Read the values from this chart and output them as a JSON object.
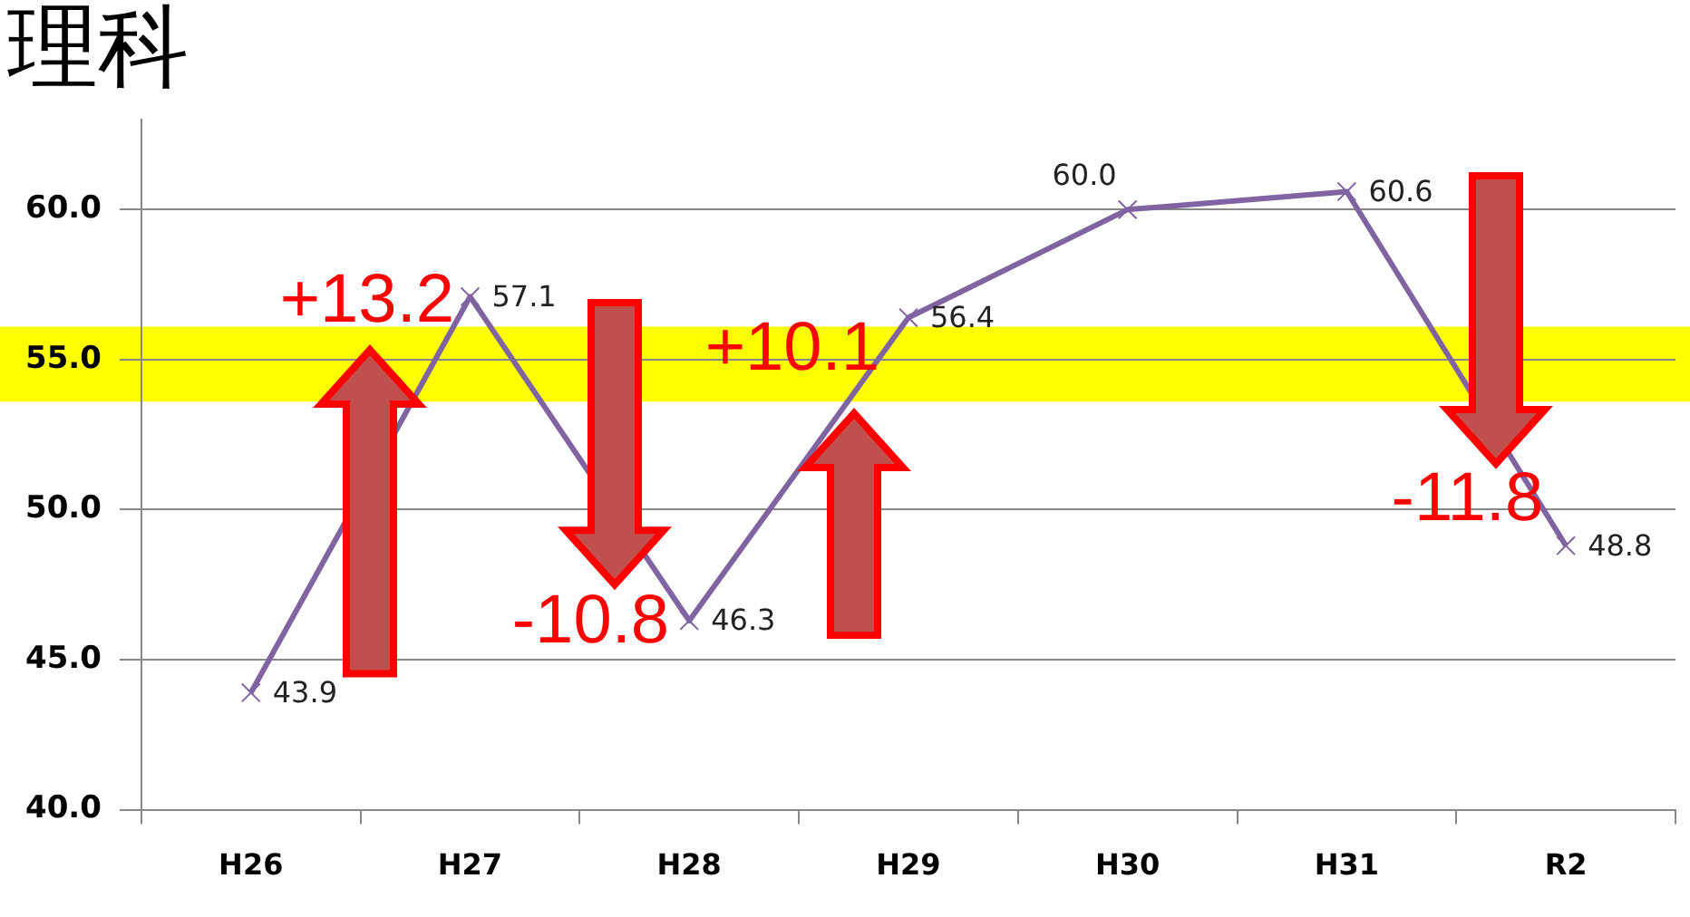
{
  "chart_data": {
    "type": "line",
    "title": "理科",
    "categories": [
      "H26",
      "H27",
      "H28",
      "H29",
      "H30",
      "H31",
      "R2"
    ],
    "series": [
      {
        "color": "#8064a2",
        "values": [
          43.9,
          57.1,
          46.3,
          56.4,
          60.0,
          60.6,
          48.8
        ]
      }
    ],
    "value_labels": [
      "43.9",
      "57.1",
      "46.3",
      "56.4",
      "60.0",
      "60.6",
      "48.8"
    ],
    "marker": "cross",
    "line_style": "solid",
    "grid": "y",
    "ylim": [
      40,
      63
    ],
    "yticks": [
      {
        "value": 40,
        "label": "40.0"
      },
      {
        "value": 45,
        "label": "45.0"
      },
      {
        "value": 50,
        "label": "50.0"
      },
      {
        "value": 55,
        "label": "55.0"
      },
      {
        "value": 60,
        "label": "60.0"
      }
    ],
    "bands": [
      {
        "axis": "y",
        "from": 53.6,
        "to": 56.1,
        "color": "#ffff00"
      }
    ],
    "annotations": [
      "+13.2",
      "-10.8",
      "+10.1",
      "-11.8"
    ]
  }
}
